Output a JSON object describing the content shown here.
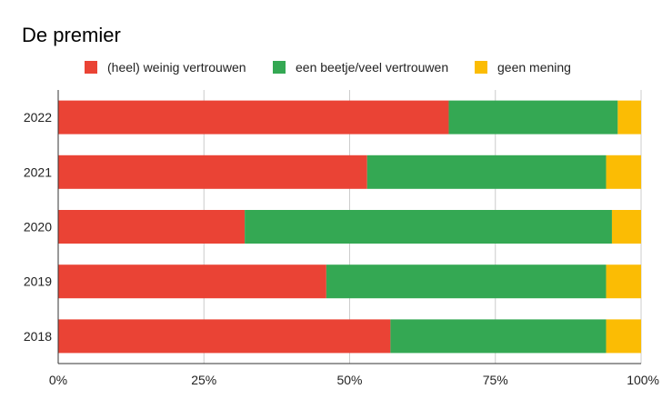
{
  "chart_data": {
    "type": "bar",
    "orientation": "horizontal",
    "stacked": "percent",
    "title": "De premier",
    "categories": [
      "2022",
      "2021",
      "2020",
      "2019",
      "2018"
    ],
    "series": [
      {
        "name": "(heel) weinig vertrouwen",
        "color": "#EA4335",
        "values": [
          67,
          53,
          32,
          46,
          57
        ]
      },
      {
        "name": "een beetje/veel vertrouwen",
        "color": "#34A853",
        "values": [
          29,
          41,
          63,
          48,
          37
        ]
      },
      {
        "name": "geen mening",
        "color": "#FBBC04",
        "values": [
          4,
          6,
          5,
          6,
          6
        ]
      }
    ],
    "x_ticks": [
      "0%",
      "25%",
      "50%",
      "75%",
      "100%"
    ],
    "xlim": [
      0,
      100
    ],
    "legend_position": "top",
    "grid": true
  }
}
